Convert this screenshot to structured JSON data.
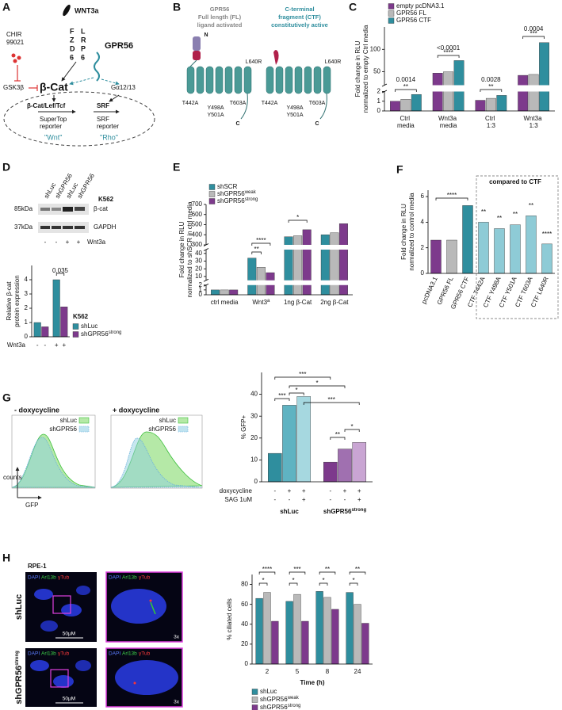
{
  "panels": {
    "A": {
      "letter": "A",
      "texts": [
        "WNT3a",
        "F",
        "Z",
        "D",
        "6",
        "L",
        "R",
        "P",
        "6",
        "GPR56",
        "CHIR",
        "99021",
        "GSK3β",
        "β-Cat",
        "Gα12/13",
        "β-Cat/Lef/Tcf",
        "SRF",
        "SuperTop",
        "reporter",
        "SRF",
        "reporter",
        "\"Wnt\"",
        "\"Rho\""
      ]
    },
    "B": {
      "letter": "B",
      "texts": [
        "GPR56",
        "Full length (FL)",
        "ligand activated",
        "C-terminal",
        "fragment (CTF)",
        "constitutively active",
        "N",
        "L640R",
        "T442A",
        "Y498A",
        "Y501A",
        "T603A",
        "C",
        "L640R",
        "T442A",
        "Y498A",
        "Y501A",
        "T603A",
        "C"
      ]
    },
    "C": {
      "letter": "C",
      "chart_data": {
        "type": "bar",
        "ylabel": [
          "Fold change in RLU",
          "normalized to empty Ctrl media"
        ],
        "categories": [
          "Ctrl media",
          "Wnt3a media",
          "Ctrl 1:3",
          "Wnt3a 1:3"
        ],
        "series": [
          {
            "name": "empty pcDNA3.1",
            "color": "#7d3a8c",
            "values": [
              1.0,
              47,
              1.1,
              42
            ]
          },
          {
            "name": "GPR56 FL",
            "color": "#b9b9b9",
            "values": [
              1.2,
              50,
              1.3,
              44
            ]
          },
          {
            "name": "GPR56 CTF",
            "color": "#2f8e9e",
            "values": [
              1.7,
              75,
              1.6,
              115
            ]
          }
        ],
        "y_segments": [
          {
            "ylim": [
              0,
              2
            ],
            "yticks": [
              0,
              1,
              2
            ]
          },
          {
            "ylim": [
              20,
              150
            ],
            "yticks": [
              50,
              100
            ]
          }
        ],
        "annotations": [
          "0.0014",
          "**",
          "****",
          "<0.0001",
          "0.0028",
          "**",
          "0.0004",
          "***"
        ]
      }
    },
    "D": {
      "letter": "D",
      "texts": [
        "shLuc",
        "shGPR56",
        "shLuc",
        "shGPR56",
        "K562",
        "85kDa",
        "37kDa",
        "β-cat",
        "GAPDH",
        "-",
        "-",
        "+",
        "+",
        "Wnt3a"
      ],
      "chart_data": {
        "type": "bar",
        "ylabel": [
          "Relative β-cat",
          "protein expression"
        ],
        "categories": [
          null,
          null
        ],
        "series": [
          {
            "name": "shLuc",
            "color": "#2f8e9e",
            "values": [
              1.0,
              4.0
            ]
          },
          {
            "name": "shGPR56strong",
            "color": "#7d3a8c",
            "values": [
              0.7,
              2.1
            ]
          }
        ],
        "ylim": [
          0,
          5
        ],
        "yticks": [
          0,
          1,
          2,
          3,
          4
        ],
        "conditions": [
          {
            "label": "Wnt3a",
            "marks": [
              "-",
              "-",
              "+",
              "+"
            ]
          }
        ],
        "note": "K562",
        "annotations": [
          "0.035"
        ]
      }
    },
    "E": {
      "letter": "E",
      "chart_data": {
        "type": "bar",
        "ylabel": [
          "Fold change in RLU",
          "normalized to shSCR in ctrl media"
        ],
        "categories": [
          "ctrl media",
          "Wnt3a",
          "1ng β-Cat",
          "2ng β-Cat"
        ],
        "series": [
          {
            "name": "shSCR",
            "color": "#2f8e9e",
            "values": [
              1.0,
              34,
              380,
              400
            ]
          },
          {
            "name": "shGPR56weak",
            "color": "#b9b9b9",
            "values": [
              1.0,
              22,
              390,
              420
            ]
          },
          {
            "name": "shGPR56strong",
            "color": "#7d3a8c",
            "values": [
              1.0,
              15,
              450,
              510
            ]
          }
        ],
        "y_segments": [
          {
            "ylim": [
              0,
              2
            ],
            "yticks": [
              0,
              1,
              2
            ]
          },
          {
            "ylim": [
              5,
              45
            ],
            "yticks": [
              10,
              20,
              30,
              40
            ]
          },
          {
            "ylim": [
              300,
              700
            ],
            "yticks": [
              300,
              400,
              500,
              600,
              700
            ]
          }
        ],
        "annotations": [
          "****",
          "**",
          "*"
        ]
      }
    },
    "F": {
      "letter": "F",
      "chart_data": {
        "type": "bar",
        "ylabel": [
          "Fold change in RLU",
          "normalized to control media"
        ],
        "categories": [
          "pcDNA3.1",
          "GPR56 FL",
          "GPR56 CTF",
          "CTF T442A",
          "CTF Y498A",
          "CTF Y501A",
          "CTF T603A",
          "CTF L640R"
        ],
        "series": [
          {
            "values": [
              2.6,
              2.6,
              5.3,
              4.0,
              3.5,
              3.8,
              4.5,
              2.3
            ],
            "colors": [
              "#7d3a8c",
              "#b9b9b9",
              "#2f8e9e",
              "#8ecbd6",
              "#8ecbd6",
              "#8ecbd6",
              "#8ecbd6",
              "#8ecbd6"
            ]
          }
        ],
        "ylim": [
          0,
          6.5
        ],
        "yticks": [
          0,
          2,
          4,
          6
        ],
        "note": "compared to CTF",
        "annotations": [
          "****",
          "**",
          "**",
          "**",
          "**",
          "****"
        ]
      }
    },
    "G": {
      "letter": "G",
      "texts": [
        "- doxycycline",
        "+ doxycycline",
        "shLuc",
        "shGPR56",
        "shLuc",
        "shGPR56",
        "counts",
        "GFP"
      ],
      "chart_data": {
        "type": "bar",
        "ylabel": "% GFP+",
        "categories": [
          "shLuc",
          "shGPR56strong"
        ],
        "series": [
          {
            "colors": [
              "#2f8e9e",
              "#7d3a8c"
            ],
            "values": [
              13,
              9
            ]
          },
          {
            "colors": [
              "#5fb3c2",
              "#a070b0"
            ],
            "values": [
              35,
              15
            ]
          },
          {
            "colors": [
              "#a6d8e0",
              "#c9a5d3"
            ],
            "values": [
              39,
              18
            ]
          }
        ],
        "ylim": [
          0,
          50
        ],
        "yticks": [
          0,
          10,
          20,
          30,
          40
        ],
        "conditions": [
          {
            "label": "doxycycline",
            "marks": [
              "-",
              "+",
              "+",
              "-",
              "+",
              "+"
            ]
          },
          {
            "label": "SAG 1uM",
            "marks": [
              "-",
              "-",
              "+",
              "-",
              "-",
              "+"
            ]
          }
        ],
        "annotations": [
          "***",
          "*",
          "***",
          "*",
          "***",
          "**",
          "*"
        ]
      }
    },
    "H": {
      "letter": "H",
      "texts": [
        "RPE-1",
        "shLuc",
        "shGPR56strong"
      ],
      "images": [
        {
          "stains": [
            "DAPI",
            "Arl13b",
            "γTub"
          ],
          "caption": "50μM"
        },
        {
          "stains": [
            "DAPI",
            "Arl13b",
            "γTub"
          ],
          "caption": "3x"
        },
        {
          "stains": [
            "DAPI",
            "Arl13b",
            "γTub"
          ],
          "caption": "50μM"
        },
        {
          "stains": [
            "DAPI",
            "Arl13b",
            "γTub"
          ],
          "caption": "3x"
        }
      ],
      "chart_data": {
        "type": "bar",
        "ylabel": "% ciliated cells",
        "xlabel": "Time (h)",
        "categories": [
          "2",
          "5",
          "8",
          "24"
        ],
        "series": [
          {
            "name": "shLuc",
            "color": "#2f8e9e",
            "values": [
              66,
              63,
              73,
              72
            ]
          },
          {
            "name": "shGPR56weak",
            "color": "#b9b9b9",
            "values": [
              72,
              70,
              67,
              60
            ]
          },
          {
            "name": "shGPR56strong",
            "color": "#7d3a8c",
            "values": [
              43,
              43,
              55,
              41
            ]
          }
        ],
        "ylim": [
          0,
          90
        ],
        "yticks": [
          0,
          20,
          40,
          60,
          80
        ],
        "annotations": [
          "****",
          "*",
          "***",
          "*",
          "**",
          "*",
          "**",
          "*"
        ]
      }
    }
  }
}
